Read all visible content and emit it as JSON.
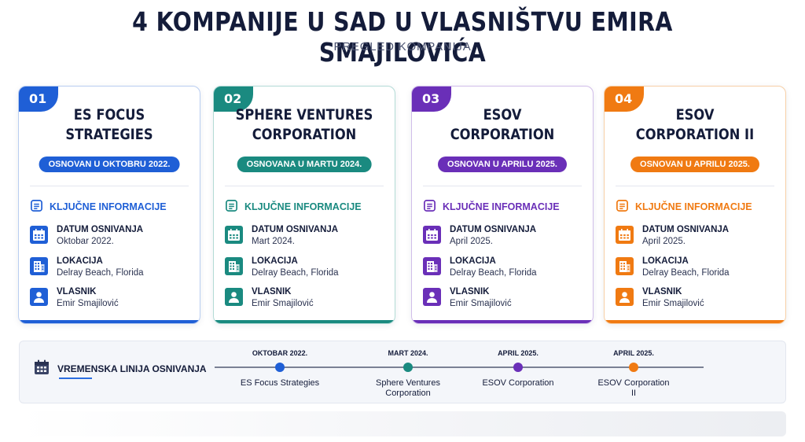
{
  "header": {
    "title": "4 KOMPANIJE U SAD U VLASNIŠTVU EMIRA SMAJILOVIĆA",
    "subtitle": "PREGLED KOMPANIJA"
  },
  "cards": [
    {
      "number": "01",
      "name_line1": "ES FOCUS",
      "name_line2": "STRATEGIES",
      "founded_badge": "OSNOVAN U OKTOBRU 2022.",
      "color": "#1f5fd6",
      "border": "#b9cdf1",
      "section_title": "KLJUČNE INFORMACIJE",
      "date_label": "DATUM OSNIVANJA",
      "date_value": "Oktobar 2022.",
      "location_label": "LOKACIJA",
      "location_value": "Delray Beach, Florida",
      "owner_label": "VLASNIK",
      "owner_value": "Emir Smajilović"
    },
    {
      "number": "02",
      "name_line1": "SPHERE VENTURES",
      "name_line2": "CORPORATION",
      "founded_badge": "OSNOVANA U MARTU 2024.",
      "color": "#1a8a80",
      "border": "#b3dbd6",
      "section_title": "KLJUČNE INFORMACIJE",
      "date_label": "DATUM OSNIVANJA",
      "date_value": "Mart 2024.",
      "location_label": "LOKACIJA",
      "location_value": "Delray Beach, Florida",
      "owner_label": "VLASNIK",
      "owner_value": "Emir Smajilović"
    },
    {
      "number": "03",
      "name_line1": "ESOV",
      "name_line2": "CORPORATION",
      "founded_badge": "OSNOVAN U APRILU 2025.",
      "color": "#6a2fb8",
      "border": "#d1bde9",
      "section_title": "KLJUČNE INFORMACIJE",
      "date_label": "DATUM OSNIVANJA",
      "date_value": "April 2025.",
      "location_label": "LOKACIJA",
      "location_value": "Delray Beach, Florida",
      "owner_label": "VLASNIK",
      "owner_value": "Emir Smajilović"
    },
    {
      "number": "04",
      "name_line1": "ESOV",
      "name_line2": "CORPORATION II",
      "founded_badge": "OSNOVAN U APRILU 2025.",
      "color": "#f07a12",
      "border": "#f7cfa6",
      "section_title": "KLJUČNE INFORMACIJE",
      "date_label": "DATUM OSNIVANJA",
      "date_value": "April 2025.",
      "location_label": "LOKACIJA",
      "location_value": "Delray Beach, Florida",
      "owner_label": "VLASNIK",
      "owner_value": "Emir Smajilović"
    }
  ],
  "timeline": {
    "label": "VREMENSKA LINIJA OSNIVANJA",
    "events": [
      {
        "date": "OKTOBAR 2022.",
        "name": "ES Focus Strategies",
        "color": "#1f5fd6"
      },
      {
        "date": "MART 2024.",
        "name": "Sphere Ventures Corporation",
        "color": "#1a8a80"
      },
      {
        "date": "APRIL 2025.",
        "name": "ESOV Corporation",
        "color": "#6a2fb8"
      },
      {
        "date": "APRIL 2025.",
        "name": "ESOV Corporation II",
        "color": "#f07a12"
      }
    ]
  },
  "icons": {
    "section": "clipboard-list-icon",
    "date": "calendar-icon",
    "location": "building-icon",
    "owner": "person-icon",
    "timeline": "calendar-icon"
  }
}
